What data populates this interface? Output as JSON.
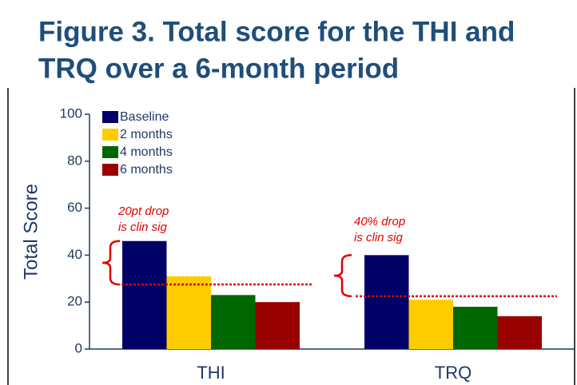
{
  "chart_data": {
    "type": "bar",
    "title_lines": [
      "Figure 3.  Total score for the THI and",
      "TRQ over a 6-month period"
    ],
    "y_label": "Total Score",
    "categories": [
      "THI",
      "TRQ"
    ],
    "series": [
      {
        "name": "Baseline",
        "color": "#000066",
        "values": [
          46,
          40
        ]
      },
      {
        "name": "2 months",
        "color": "#ffcc00",
        "values": [
          31,
          21
        ]
      },
      {
        "name": "4 months",
        "color": "#006600",
        "values": [
          23,
          18
        ]
      },
      {
        "name": "6 months",
        "color": "#990000",
        "values": [
          20,
          14
        ]
      }
    ],
    "annotations": [
      {
        "lines": [
          "20pt drop",
          "is clin sig"
        ],
        "value": 27.5
      },
      {
        "lines": [
          "40% drop",
          "is clin sig"
        ],
        "value": 22.5
      }
    ],
    "ylim": [
      0,
      100
    ],
    "yticks": [
      0,
      20,
      40,
      60,
      80,
      100
    ],
    "legend": "upper left"
  }
}
